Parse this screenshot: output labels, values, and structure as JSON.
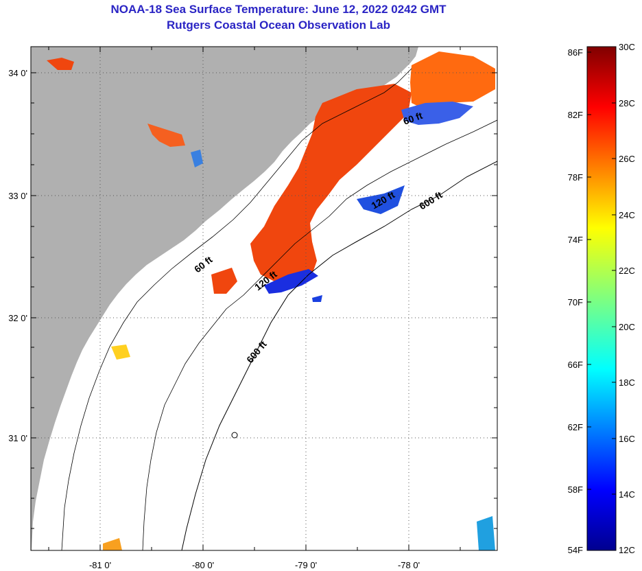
{
  "title": {
    "line1": "NOAA-18 Sea Surface Temperature:  June 12, 2022 0242 GMT",
    "line2": "Rutgers Coastal Ocean Observation Lab"
  },
  "map": {
    "lat_labels": [
      "34 0'",
      "33 0'",
      "32 0'",
      "31 0'"
    ],
    "lon_labels": [
      "-81 0'",
      "-80 0'",
      "-79 0'",
      "-78 0'"
    ],
    "contours": [
      "60 ft",
      "120 ft",
      "600 ft",
      "600 ft",
      "60 ft",
      "120 ft"
    ],
    "colors": {
      "land": "#b0b0b0",
      "ocean_nodata": "#ffffff",
      "warm": "#f0460e",
      "cool": "#1a2ee0"
    }
  },
  "colorbar": {
    "fahrenheit": [
      "86F",
      "82F",
      "78F",
      "74F",
      "70F",
      "66F",
      "62F",
      "58F",
      "54F"
    ],
    "celsius": [
      "30C",
      "28C",
      "26C",
      "24C",
      "22C",
      "20C",
      "18C",
      "16C",
      "14C",
      "12C"
    ]
  }
}
